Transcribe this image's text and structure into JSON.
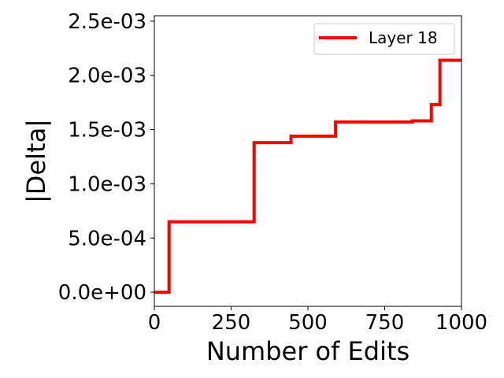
{
  "chart_data": {
    "type": "line",
    "title": "",
    "xlabel": "Number of Edits",
    "ylabel": "|Delta|",
    "xlim": [
      0,
      1000
    ],
    "ylim": [
      -0.00013,
      0.00255
    ],
    "x_ticks": [
      0,
      250,
      500,
      750,
      1000
    ],
    "x_tick_labels": [
      "0",
      "250",
      "500",
      "750",
      "1000"
    ],
    "y_ticks": [
      0.0,
      0.0005,
      0.001,
      0.0015,
      0.002,
      0.0025
    ],
    "y_tick_labels": [
      "0.0e+00",
      "5.0e-04",
      "1.0e-03",
      "1.5e-03",
      "2.0e-03",
      "2.5e-03"
    ],
    "grid": false,
    "legend": {
      "position": "top-right",
      "entries": [
        "Layer 18"
      ]
    },
    "series": [
      {
        "name": "Layer 18",
        "color": "#ff0000",
        "step": true,
        "points": [
          [
            0,
            0.0
          ],
          [
            48,
            0.0
          ],
          [
            48,
            0.00065
          ],
          [
            325,
            0.00065
          ],
          [
            325,
            0.00138
          ],
          [
            445,
            0.00138
          ],
          [
            445,
            0.00144
          ],
          [
            590,
            0.00144
          ],
          [
            590,
            0.00157
          ],
          [
            840,
            0.00157
          ],
          [
            840,
            0.00158
          ],
          [
            902,
            0.00158
          ],
          [
            902,
            0.00173
          ],
          [
            930,
            0.00173
          ],
          [
            930,
            0.00214
          ],
          [
            1000,
            0.00214
          ]
        ]
      }
    ]
  }
}
